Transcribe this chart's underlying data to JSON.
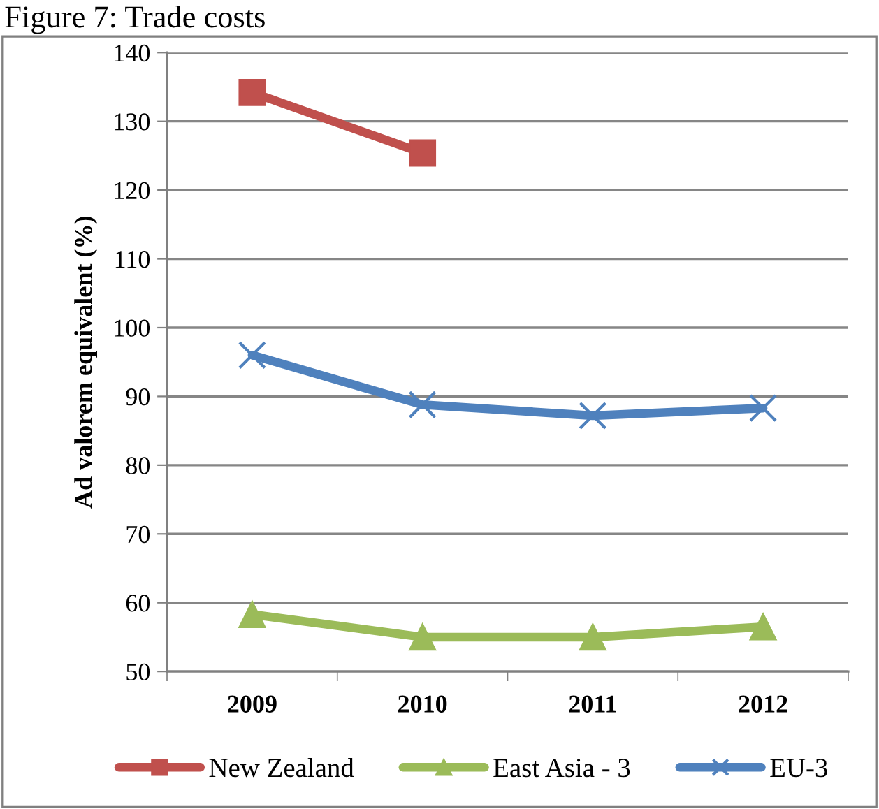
{
  "chart_data": {
    "type": "line",
    "title": "Figure 7: Trade costs",
    "ylabel": "Ad valorem equivalent (%)",
    "categories": [
      "2009",
      "2010",
      "2011",
      "2012"
    ],
    "series": [
      {
        "name": "New Zealand",
        "color": "#c0504d",
        "marker": "square",
        "values": [
          134.2,
          125.4,
          null,
          null
        ]
      },
      {
        "name": "East Asia - 3",
        "color": "#9bbb59",
        "marker": "triangle",
        "values": [
          58.3,
          55.0,
          55.0,
          56.5
        ]
      },
      {
        "name": "EU-3",
        "color": "#4f81bd",
        "marker": "cross",
        "values": [
          96.0,
          88.8,
          87.2,
          88.3
        ]
      }
    ],
    "ylim": [
      50,
      140
    ],
    "yticks": [
      50,
      60,
      70,
      80,
      90,
      100,
      110,
      120,
      130,
      140
    ],
    "grid": "y",
    "legend": "bottom"
  }
}
